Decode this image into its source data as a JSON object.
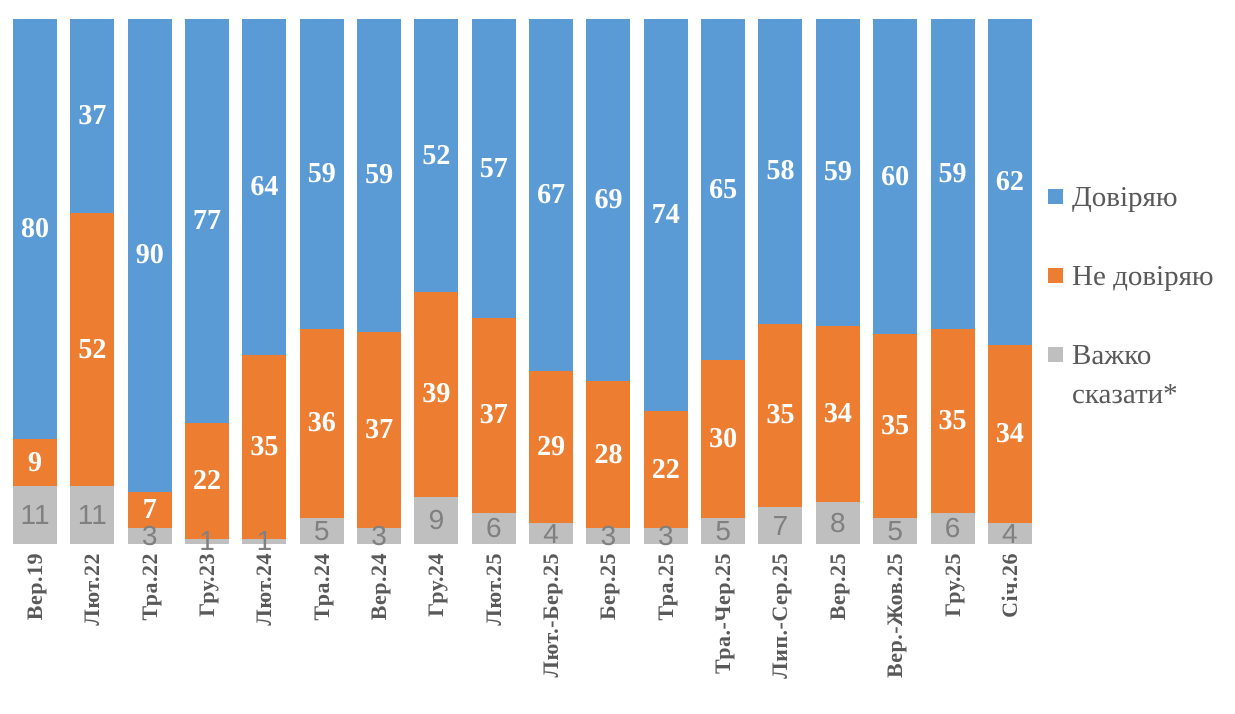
{
  "chart_data": {
    "type": "bar",
    "subtype": "stacked-100-percent-column",
    "title": "",
    "xlabel": "",
    "ylabel": "",
    "grid": false,
    "legend_position": "right",
    "categories": [
      "Вер.19",
      "Лют.22",
      "Тра.22",
      "Гру.23",
      "Лют.24",
      "Тра.24",
      "Вер.24",
      "Гру.24",
      "Лют.25",
      "Лют.-Бер.25",
      "Бер.25",
      "Тра.25",
      "Тра.-Чер.25",
      "Лип.-Сер.25",
      "Вер.25",
      "Вер.-Жов.25",
      "Гру.25",
      "Січ.26"
    ],
    "series": [
      {
        "key": "trust",
        "name": "Довіряю",
        "color": "#5B9BD5",
        "label_style": "white",
        "values": [
          80,
          37,
          90,
          77,
          64,
          59,
          59,
          52,
          57,
          67,
          69,
          74,
          65,
          58,
          59,
          60,
          59,
          62
        ]
      },
      {
        "key": "distrust",
        "name": "Не довіряю",
        "color": "#ED7D31",
        "label_style": "white",
        "values": [
          9,
          52,
          7,
          22,
          35,
          36,
          37,
          39,
          37,
          29,
          28,
          22,
          30,
          35,
          34,
          35,
          35,
          34
        ]
      },
      {
        "key": "hard-to-say",
        "name": "Важко сказати*",
        "color": "#BFBFBF",
        "label_style": "gray",
        "values": [
          11,
          11,
          3,
          1,
          1,
          5,
          3,
          9,
          6,
          4,
          3,
          3,
          5,
          7,
          8,
          5,
          6,
          4
        ]
      }
    ]
  },
  "legend": {
    "items": [
      {
        "label": "Довіряю",
        "color": "#5B9BD5"
      },
      {
        "label": "Не довіряю",
        "color": "#ED7D31"
      },
      {
        "label": "Важко сказати*",
        "color": "#BFBFBF"
      }
    ]
  },
  "colors": {
    "bar_label_white": "#FFFFFF",
    "bar_label_gray": "#808080",
    "axis_label": "#595959",
    "legend_text": "#595959",
    "background": "#FFFFFF"
  }
}
